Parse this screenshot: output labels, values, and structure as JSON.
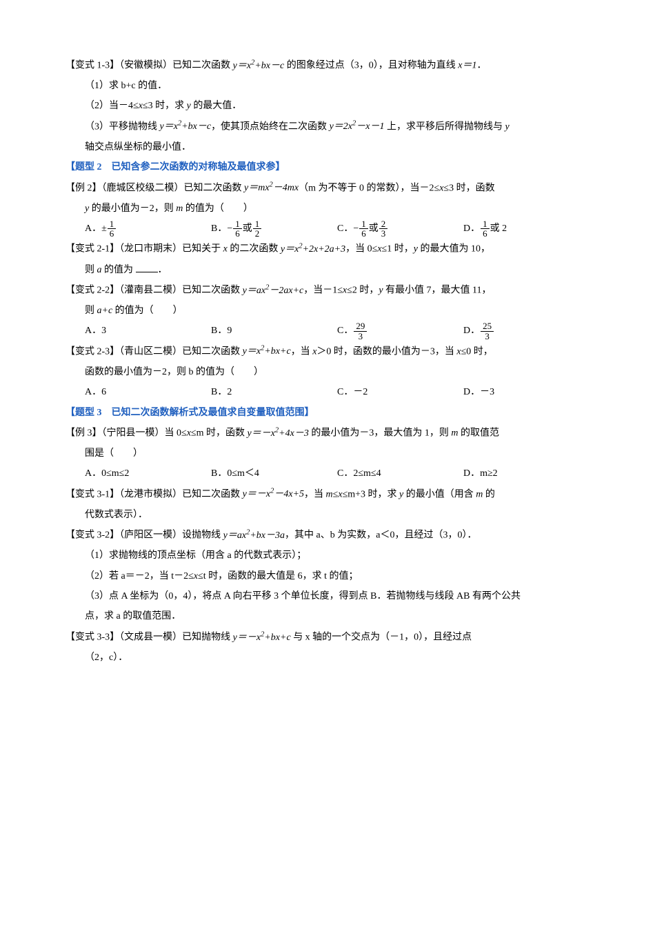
{
  "p1": {
    "lead": "【变式 1-3】（安徽模拟）已知二次函数 ",
    "eq1_a": "y＝x",
    "eq1_b": "+bx－c",
    "mid": " 的图象经过点（3，0），且对称轴为直线 ",
    "eq2": "x＝1",
    "tail": "．",
    "s1": "（1）求 b+c 的值．",
    "s2_a": "（2）当－4≤",
    "s2_b": "x",
    "s2_c": "≤3 时，求 ",
    "s2_d": "y",
    "s2_e": " 的最大值．",
    "s3_a": "（3）平移抛物线 ",
    "s3_b": "y＝x",
    "s3_c": "+bx－c",
    "s3_d": "，使其顶点始终在二次函数 ",
    "s3_e": "y＝2x",
    "s3_f": "－x－1",
    "s3_g": " 上，求平移后所得抛物线与 ",
    "s3_h": "y",
    "s3_tail": "轴交点纵坐标的最小值．"
  },
  "t2": "【题型 2　已知含参二次函数的对称轴及最值求参】",
  "p2": {
    "lead_a": "【例 2】（鹿城区校级二模）已知二次函数 ",
    "eq_a": "y＝mx",
    "eq_b": "－4mx",
    "mid": "（m 为不等于 0 的常数），当－2≤",
    "x": "x",
    "mid2": "≤3 时，函数",
    "l2_a": "y",
    "l2_b": " 的最小值为－2，则 ",
    "l2_c": "m",
    "l2_d": " 的值为（　　）",
    "A": "A．±",
    "A_n": "1",
    "A_d": "6",
    "B": "B．−",
    "B1_n": "1",
    "B1_d": "6",
    "B_or": "或",
    "B2_n": "1",
    "B2_d": "2",
    "C": "C．−",
    "C1_n": "1",
    "C1_d": "6",
    "C_or": "或",
    "C2_n": "2",
    "C2_d": "3",
    "D": "D．",
    "D_n": "1",
    "D_d": "6",
    "D_or": "或 2"
  },
  "p3": {
    "lead_a": "【变式 2-1】（龙口市期末）已知关于 ",
    "x": "x",
    "lead_b": " 的二次函数 ",
    "eq_a": "y＝x",
    "eq_b": "+2x+2a+3",
    "mid_a": "，当 0≤",
    "mid_b": "≤1 时，",
    "y": "y",
    "mid_c": " 的最大值为 10，",
    "l2_a": "则 ",
    "l2_b": "a",
    "l2_c": " 的值为 ",
    "l2_d": "．"
  },
  "p4": {
    "lead_a": "【变式 2-2】（灌南县二模）已知二次函数 ",
    "eq_a": "y＝ax",
    "eq_b": "－2ax+c",
    "mid_a": "，当－1≤",
    "x": "x",
    "mid_b": "≤2 时，",
    "y": "y",
    "mid_c": " 有最小值 7，最大值 11，",
    "l2_a": "则 ",
    "l2_b": "a+c",
    "l2_c": " 的值为（　　）",
    "A": "A．3",
    "B": "B．9",
    "C": "C．",
    "C_n": "29",
    "C_d": "3",
    "D": "D．",
    "D_n": "25",
    "D_d": "3"
  },
  "p5": {
    "lead_a": "【变式 2-3】（青山区二模）已知二次函数 ",
    "eq_a": "y＝x",
    "eq_b": "+bx+c",
    "mid_a": "，当 ",
    "x": "x",
    "mid_b": "＞0 时，函数的最小值为－3，当 ",
    "mid_c": "≤0 时，",
    "l2": "函数的最小值为－2，则 b 的值为（　　）",
    "A": "A．6",
    "B": "B．2",
    "C": "C．－2",
    "D": "D．－3"
  },
  "t3": "【题型 3　已知二次函数解析式及最值求自变量取值范围】",
  "p6": {
    "lead_a": "【例 3】（宁阳县一模）当 0≤",
    "x": "x",
    "lead_b": "≤m 时，函数 ",
    "eq_a": "y＝－x",
    "eq_b": "+4x－3",
    "mid": " 的最小值为－3，最大值为 1，则 ",
    "m": "m",
    "tail": " 的取值范",
    "l2": "围是（　　）",
    "A": "A．0≤m≤2",
    "B": "B．0≤m＜4",
    "C": "C．2≤m≤4",
    "D": "D．m≥2"
  },
  "p7": {
    "lead_a": "【变式 3-1】（龙港市模拟）已知二次函数 ",
    "eq_a": "y＝－x",
    "eq_b": "－4x+5",
    "mid_a": "，当 ",
    "m": "m",
    "mid_b": "≤",
    "x": "x",
    "mid_c": "≤m+3 时，求 ",
    "y": "y",
    "mid_d": " 的最小值（用含 ",
    "tail": " 的",
    "l2": "代数式表示）．"
  },
  "p8": {
    "lead_a": "【变式 3-2】（庐阳区一模）设抛物线 ",
    "eq_a": "y＝ax",
    "eq_b": "+bx－3a",
    "mid": "，其中 a、b 为实数，a＜0，且经过（3，0）．",
    "s1": "（1）求抛物线的顶点坐标（用含 a 的代数式表示）；",
    "s2_a": "（2）若 a＝－2，当 t－2≤",
    "s2_x": "x",
    "s2_b": "≤t 时，函数的最大值是 6，求 t 的值；",
    "s3": "（3）点 A 坐标为（0，4），将点 A 向右平移 3 个单位长度，得到点 B．若抛物线与线段 AB 有两个公共",
    "s3b": "点，求 a 的取值范围．"
  },
  "p9": {
    "lead_a": "【变式 3-3】（文成县一模）已知抛物线 ",
    "eq_a": "y＝－x",
    "eq_b": "+bx+c",
    "mid": " 与 x 轴的一个交点为（－1，0），且经过点",
    "l2": "（2，c）．"
  }
}
